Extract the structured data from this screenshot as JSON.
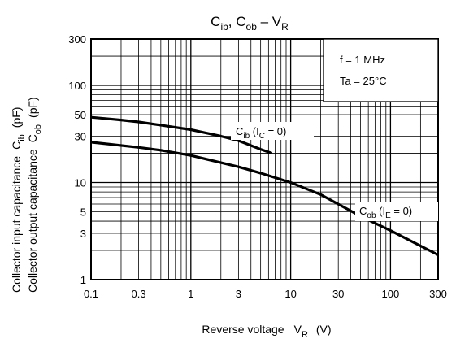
{
  "chart_data": {
    "type": "line",
    "title": {
      "base1": "C",
      "sub1": "ib",
      "sep": ", ",
      "base2": "C",
      "sub2": "ob",
      "dash": " – ",
      "base3": "V",
      "sub3": "R"
    },
    "xlabel": {
      "text": "Reverse voltage",
      "sym": "V",
      "sub": "R",
      "unit": "(V)"
    },
    "ylabel": {
      "line1": "Collector input capacitance",
      "sym1": "C",
      "sub1": "ib",
      "unit1": "(pF)",
      "line2": "Collector output capacitance",
      "sym2": "C",
      "sub2": "ob",
      "unit2": "(pF)"
    },
    "xscale": "log",
    "yscale": "log",
    "xlim": [
      0.1,
      300
    ],
    "ylim": [
      1,
      300
    ],
    "grid": true,
    "xticks": [
      {
        "v": 0.1,
        "label": "0.1"
      },
      {
        "v": 0.3,
        "label": "0.3"
      },
      {
        "v": 1,
        "label": "1"
      },
      {
        "v": 3,
        "label": "3"
      },
      {
        "v": 10,
        "label": "10"
      },
      {
        "v": 30,
        "label": "30"
      },
      {
        "v": 100,
        "label": "100"
      },
      {
        "v": 300,
        "label": "300"
      }
    ],
    "yticks": [
      {
        "v": 1,
        "label": "1"
      },
      {
        "v": 3,
        "label": "3"
      },
      {
        "v": 5,
        "label": "5"
      },
      {
        "v": 10,
        "label": "10"
      },
      {
        "v": 30,
        "label": "30"
      },
      {
        "v": 50,
        "label": "50"
      },
      {
        "v": 100,
        "label": "100"
      },
      {
        "v": 300,
        "label": "300"
      }
    ],
    "conditions": [
      "f = 1 MHz",
      "Ta = 25°C"
    ],
    "series": [
      {
        "label": {
          "sym": "C",
          "sub": "ib",
          "cond": " (I",
          "csub": "C",
          "tail": " = 0)"
        },
        "x": [
          0.1,
          0.2,
          0.3,
          0.5,
          1,
          2,
          3,
          5,
          6.5
        ],
        "y": [
          47,
          44,
          42,
          39,
          35,
          30,
          27,
          22,
          20
        ]
      },
      {
        "label": {
          "sym": "C",
          "sub": "ob",
          "cond": " (I",
          "csub": "E",
          "tail": " = 0)"
        },
        "x": [
          0.1,
          0.3,
          0.5,
          1,
          2,
          3,
          5,
          10,
          20,
          50,
          100,
          300
        ],
        "y": [
          26,
          23,
          21.5,
          19,
          16,
          14.5,
          12.5,
          10,
          7.5,
          4.5,
          3.2,
          1.8
        ]
      }
    ]
  }
}
